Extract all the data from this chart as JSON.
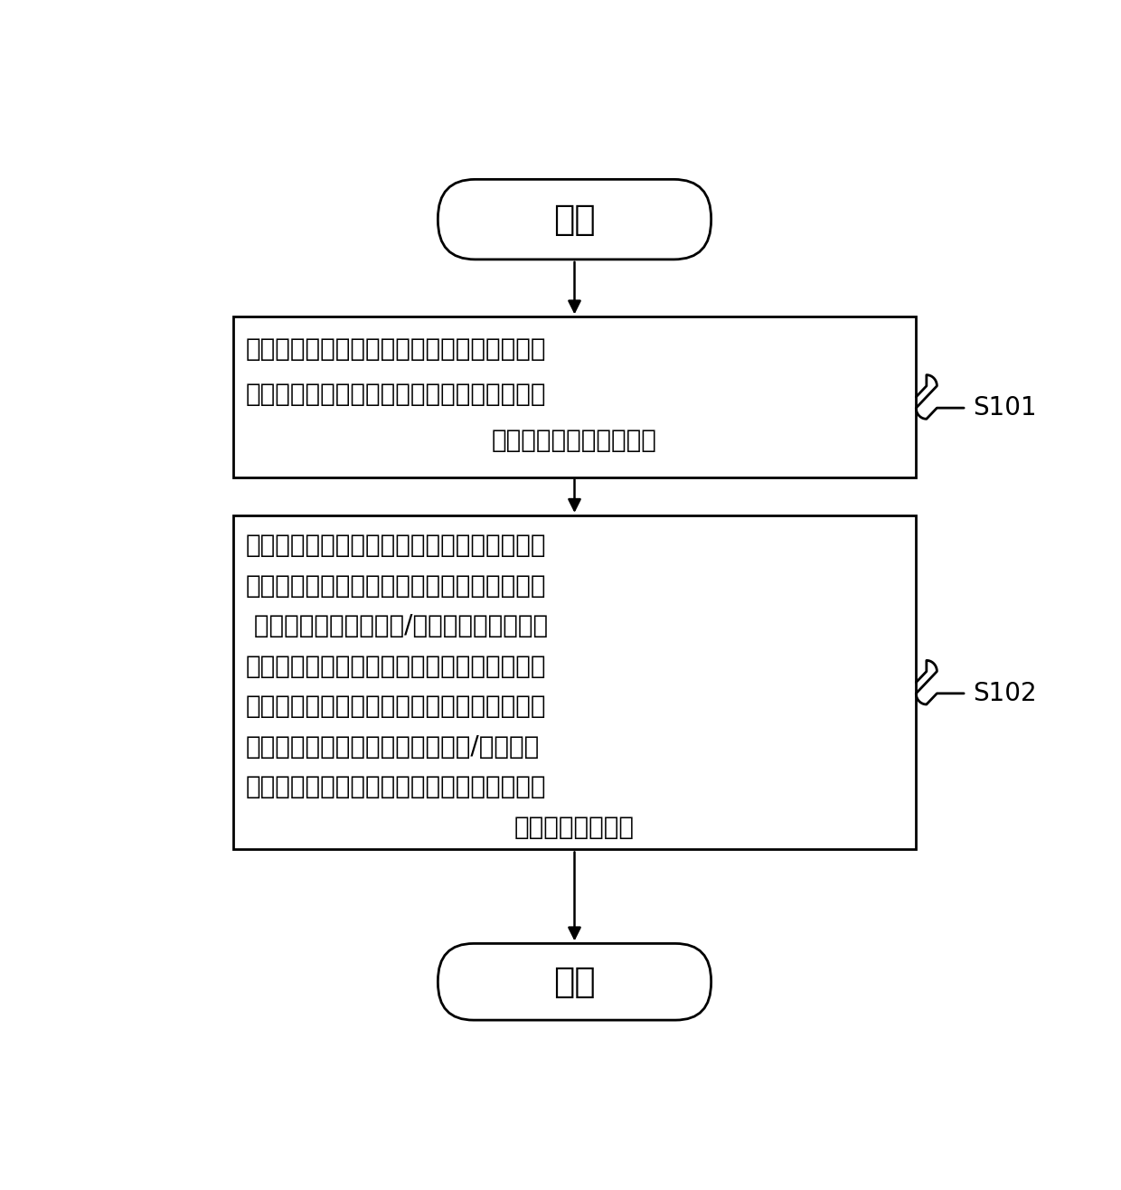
{
  "bg_color": "#ffffff",
  "border_color": "#000000",
  "text_color": "#000000",
  "arrow_color": "#000000",
  "title": "开始",
  "end_label": "结束",
  "box1_lines": [
    "仿真初始步骤：在炼钢物流周转模型中初始设",
    "定生产任务量和铁水或钢水的进厂节奏，得到",
    "进行炼钢连铸的加工计划"
  ],
  "box2_lines": [
    "仿真运行步骤：模拟所述加工计划所对应的生",
    "产过程，并在所述生产过程中动态调用相应的",
    " 规则计算模型来计算铁/钢水的温度变化、能",
    "源介质消耗量和物质消耗量，所述规则计算模",
    "型和炼钢物流周转模型为预先建立的数学模型",
    "，其中，所述规则计算模型包括铁/钢水温度",
    "变化规则模型、设备能耗消耗规则模型及设备",
    "物质消耗规则模型"
  ],
  "label_s101": "S101",
  "label_s102": "S102",
  "figwidth": 12.4,
  "figheight": 13.16,
  "dpi": 100
}
